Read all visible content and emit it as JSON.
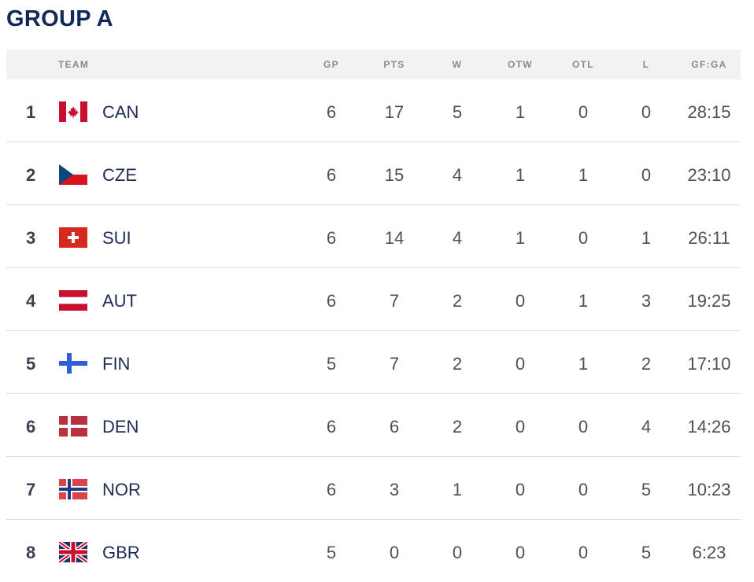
{
  "title": "GROUP A",
  "columns": {
    "team": "TEAM",
    "gp": "GP",
    "pts": "PTS",
    "w": "W",
    "otw": "OTW",
    "otl": "OTL",
    "l": "L",
    "gfga": "GF:GA"
  },
  "rows": [
    {
      "rank": "1",
      "flag": "canada-flag-icon",
      "team": "CAN",
      "gp": "6",
      "pts": "17",
      "w": "5",
      "otw": "1",
      "otl": "0",
      "l": "0",
      "gfga": "28:15"
    },
    {
      "rank": "2",
      "flag": "czechia-flag-icon",
      "team": "CZE",
      "gp": "6",
      "pts": "15",
      "w": "4",
      "otw": "1",
      "otl": "1",
      "l": "0",
      "gfga": "23:10"
    },
    {
      "rank": "3",
      "flag": "switzerland-flag-icon",
      "team": "SUI",
      "gp": "6",
      "pts": "14",
      "w": "4",
      "otw": "1",
      "otl": "0",
      "l": "1",
      "gfga": "26:11"
    },
    {
      "rank": "4",
      "flag": "austria-flag-icon",
      "team": "AUT",
      "gp": "6",
      "pts": "7",
      "w": "2",
      "otw": "0",
      "otl": "1",
      "l": "3",
      "gfga": "19:25"
    },
    {
      "rank": "5",
      "flag": "finland-flag-icon",
      "team": "FIN",
      "gp": "5",
      "pts": "7",
      "w": "2",
      "otw": "0",
      "otl": "1",
      "l": "2",
      "gfga": "17:10"
    },
    {
      "rank": "6",
      "flag": "denmark-flag-icon",
      "team": "DEN",
      "gp": "6",
      "pts": "6",
      "w": "2",
      "otw": "0",
      "otl": "0",
      "l": "4",
      "gfga": "14:26"
    },
    {
      "rank": "7",
      "flag": "norway-flag-icon",
      "team": "NOR",
      "gp": "6",
      "pts": "3",
      "w": "1",
      "otw": "0",
      "otl": "0",
      "l": "5",
      "gfga": "10:23"
    },
    {
      "rank": "8",
      "flag": "great-britain-flag-icon",
      "team": "GBR",
      "gp": "5",
      "pts": "0",
      "w": "0",
      "otw": "0",
      "otl": "0",
      "l": "5",
      "gfga": "6:23"
    }
  ]
}
